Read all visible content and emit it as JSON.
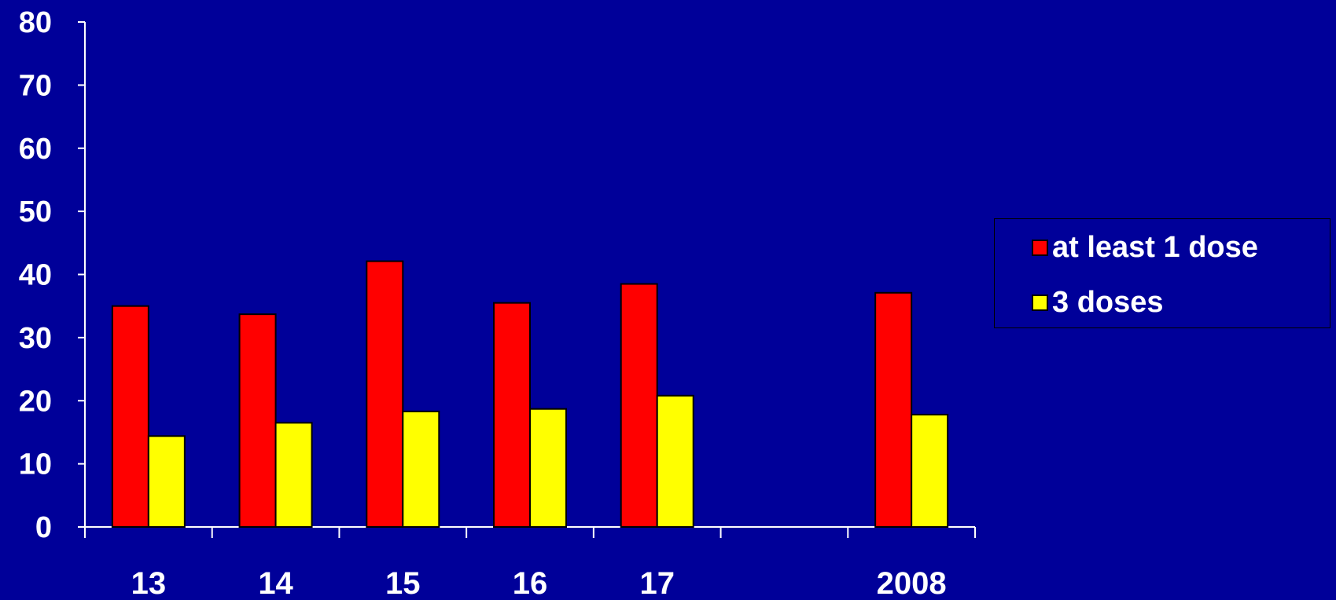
{
  "chart_data": {
    "type": "bar",
    "categories": [
      "13",
      "14",
      "15",
      "16",
      "17",
      "",
      "2008"
    ],
    "series": [
      {
        "name": "at least 1 dose",
        "color": "#ff0000",
        "values": [
          35,
          33.7,
          42.1,
          35.5,
          38.5,
          null,
          37.1
        ]
      },
      {
        "name": "3 doses",
        "color": "#ffff00",
        "values": [
          14.4,
          16.5,
          18.3,
          18.7,
          20.8,
          null,
          17.8
        ]
      }
    ],
    "ylim": [
      0,
      80
    ],
    "yticks": [
      0,
      10,
      20,
      30,
      40,
      50,
      60,
      70,
      80
    ],
    "grid": false,
    "legend_position": "right"
  },
  "colors": {
    "background": "#000099",
    "axis": "#ffffff",
    "bar_outline": "#000000"
  }
}
